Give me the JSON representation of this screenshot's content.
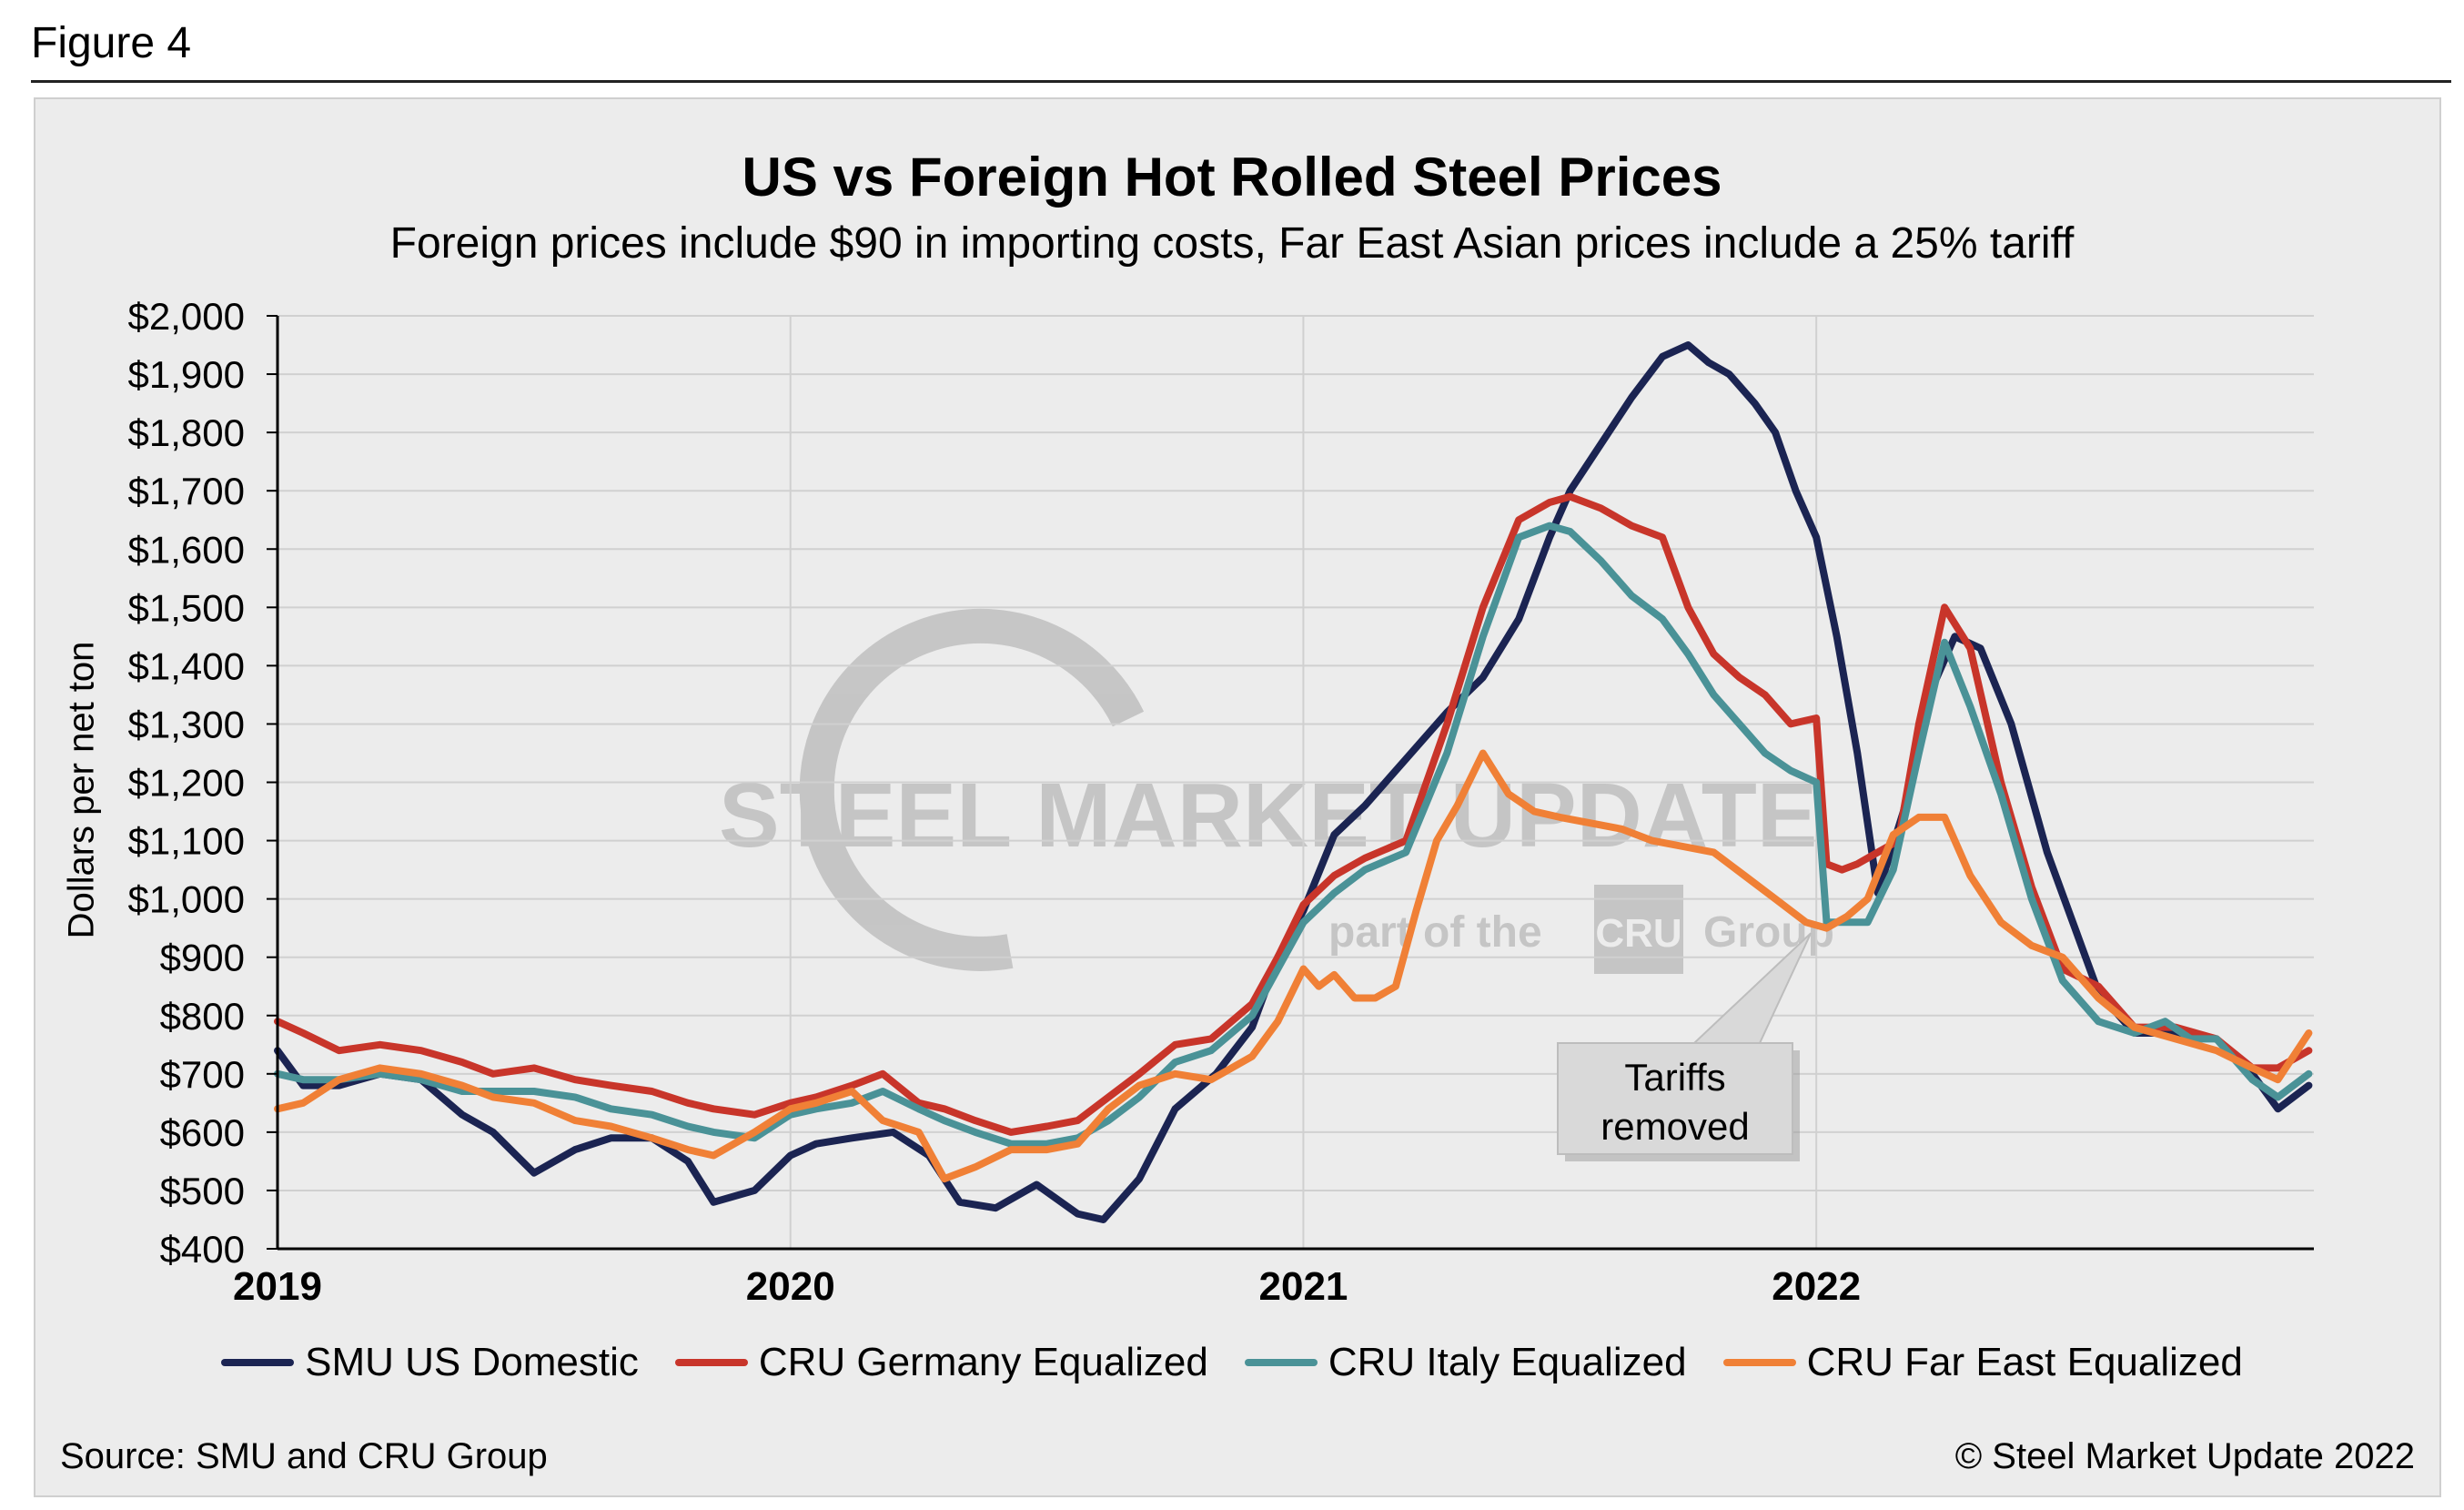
{
  "figure_label": "Figure 4",
  "source": "Source: SMU and CRU Group",
  "copyright": "© Steel Market Update 2022",
  "watermark": {
    "main": "STEEL MARKET UPDATE",
    "sub_left": "part of the",
    "sub_box": "CRU",
    "sub_right": "Group"
  },
  "annotation": {
    "line1": "Tariffs",
    "line2": "removed"
  },
  "colors": {
    "background": "#ececec",
    "grid": "#d0d0d0",
    "smu": "#1b2452",
    "germany": "#c8352a",
    "italy": "#4a9297",
    "fareast": "#f08036"
  },
  "chart_data": {
    "type": "line",
    "title": "US vs Foreign Hot Rolled Steel Prices",
    "subtitle": "Foreign prices include $90 in importing costs, Far East Asian prices include a 25% tariff",
    "ylabel": "Dollars per net ton",
    "xlabel": "",
    "xlim": [
      2019.0,
      2022.97
    ],
    "ylim": [
      400,
      2000
    ],
    "yticks": [
      400,
      500,
      600,
      700,
      800,
      900,
      1000,
      1100,
      1200,
      1300,
      1400,
      1500,
      1600,
      1700,
      1800,
      1900,
      2000
    ],
    "ytick_labels": [
      "$400",
      "$500",
      "$600",
      "$700",
      "$800",
      "$900",
      "$1,000",
      "$1,100",
      "$1,200",
      "$1,300",
      "$1,400",
      "$1,500",
      "$1,600",
      "$1,700",
      "$1,800",
      "$1,900",
      "$2,000"
    ],
    "xticks": [
      2019,
      2020,
      2021,
      2022
    ],
    "xtick_labels": [
      "2019",
      "2020",
      "2021",
      "2022"
    ],
    "grid": true,
    "legend_position": "bottom",
    "annotation": {
      "x": 2022.0,
      "y": 960,
      "text": "Tariffs removed"
    },
    "series": [
      {
        "name": "SMU US Domestic",
        "color": "#1b2452",
        "x": [
          2019.0,
          2019.05,
          2019.12,
          2019.2,
          2019.28,
          2019.36,
          2019.42,
          2019.5,
          2019.58,
          2019.65,
          2019.73,
          2019.8,
          2019.85,
          2019.93,
          2020.0,
          2020.05,
          2020.12,
          2020.2,
          2020.27,
          2020.33,
          2020.4,
          2020.48,
          2020.56,
          2020.61,
          2020.68,
          2020.75,
          2020.83,
          2020.9,
          2020.95,
          2021.0,
          2021.06,
          2021.12,
          2021.2,
          2021.28,
          2021.35,
          2021.42,
          2021.48,
          2021.52,
          2021.58,
          2021.64,
          2021.7,
          2021.75,
          2021.79,
          2021.83,
          2021.88,
          2021.92,
          2021.96,
          2022.0,
          2022.04,
          2022.08,
          2022.12,
          2022.17,
          2022.22,
          2022.27,
          2022.32,
          2022.38,
          2022.45,
          2022.55,
          2022.62,
          2022.7,
          2022.78,
          2022.85,
          2022.9,
          2022.96
        ],
        "y": [
          740,
          680,
          680,
          700,
          690,
          630,
          600,
          530,
          570,
          590,
          590,
          550,
          480,
          500,
          560,
          580,
          590,
          600,
          560,
          480,
          470,
          510,
          460,
          450,
          520,
          640,
          700,
          780,
          900,
          980,
          1110,
          1160,
          1240,
          1320,
          1380,
          1480,
          1620,
          1700,
          1780,
          1860,
          1930,
          1950,
          1920,
          1900,
          1850,
          1800,
          1700,
          1620,
          1450,
          1250,
          1010,
          1150,
          1350,
          1450,
          1430,
          1300,
          1080,
          840,
          770,
          770,
          760,
          700,
          640,
          680
        ]
      },
      {
        "name": "CRU Germany Equalized",
        "color": "#c8352a",
        "x": [
          2019.0,
          2019.05,
          2019.12,
          2019.2,
          2019.28,
          2019.36,
          2019.42,
          2019.5,
          2019.58,
          2019.65,
          2019.73,
          2019.8,
          2019.85,
          2019.93,
          2020.0,
          2020.05,
          2020.12,
          2020.18,
          2020.25,
          2020.3,
          2020.36,
          2020.43,
          2020.5,
          2020.56,
          2020.62,
          2020.68,
          2020.75,
          2020.82,
          2020.9,
          2020.95,
          2021.0,
          2021.06,
          2021.12,
          2021.2,
          2021.28,
          2021.35,
          2021.42,
          2021.48,
          2021.52,
          2021.58,
          2021.64,
          2021.7,
          2021.75,
          2021.8,
          2021.85,
          2021.9,
          2021.95,
          2022.0,
          2022.02,
          2022.05,
          2022.08,
          2022.12,
          2022.16,
          2022.2,
          2022.25,
          2022.3,
          2022.36,
          2022.42,
          2022.48,
          2022.55,
          2022.62,
          2022.7,
          2022.78,
          2022.85,
          2022.9,
          2022.96
        ],
        "y": [
          790,
          770,
          740,
          750,
          740,
          720,
          700,
          710,
          690,
          680,
          670,
          650,
          640,
          630,
          650,
          660,
          680,
          700,
          650,
          640,
          620,
          600,
          610,
          620,
          660,
          700,
          750,
          760,
          820,
          900,
          990,
          1040,
          1070,
          1100,
          1300,
          1500,
          1650,
          1680,
          1690,
          1670,
          1640,
          1620,
          1500,
          1420,
          1380,
          1350,
          1300,
          1310,
          1060,
          1050,
          1060,
          1080,
          1100,
          1300,
          1500,
          1430,
          1200,
          1020,
          880,
          850,
          780,
          780,
          760,
          710,
          710,
          740
        ]
      },
      {
        "name": "CRU Italy Equalized",
        "color": "#4a9297",
        "x": [
          2019.0,
          2019.05,
          2019.12,
          2019.2,
          2019.28,
          2019.36,
          2019.42,
          2019.5,
          2019.58,
          2019.65,
          2019.73,
          2019.8,
          2019.85,
          2019.93,
          2020.0,
          2020.05,
          2020.12,
          2020.18,
          2020.25,
          2020.3,
          2020.36,
          2020.43,
          2020.5,
          2020.56,
          2020.62,
          2020.68,
          2020.75,
          2020.82,
          2020.9,
          2020.95,
          2021.0,
          2021.06,
          2021.12,
          2021.2,
          2021.28,
          2021.35,
          2021.42,
          2021.48,
          2021.52,
          2021.58,
          2021.64,
          2021.7,
          2021.75,
          2021.8,
          2021.85,
          2021.9,
          2021.95,
          2022.0,
          2022.02,
          2022.06,
          2022.1,
          2022.15,
          2022.2,
          2022.25,
          2022.3,
          2022.36,
          2022.42,
          2022.48,
          2022.55,
          2022.62,
          2022.68,
          2022.73,
          2022.78,
          2022.85,
          2022.9,
          2022.96
        ],
        "y": [
          700,
          690,
          690,
          700,
          690,
          670,
          670,
          670,
          660,
          640,
          630,
          610,
          600,
          590,
          630,
          640,
          650,
          670,
          640,
          620,
          600,
          580,
          580,
          590,
          620,
          660,
          720,
          740,
          800,
          880,
          960,
          1010,
          1050,
          1080,
          1250,
          1450,
          1620,
          1640,
          1630,
          1580,
          1520,
          1480,
          1420,
          1350,
          1300,
          1250,
          1220,
          1200,
          960,
          960,
          960,
          1050,
          1250,
          1440,
          1330,
          1180,
          1000,
          860,
          790,
          770,
          790,
          760,
          760,
          690,
          660,
          700
        ]
      },
      {
        "name": "CRU Far East Equalized",
        "color": "#f08036",
        "x": [
          2019.0,
          2019.05,
          2019.12,
          2019.2,
          2019.28,
          2019.36,
          2019.42,
          2019.5,
          2019.58,
          2019.65,
          2019.73,
          2019.8,
          2019.85,
          2019.93,
          2020.0,
          2020.05,
          2020.12,
          2020.18,
          2020.25,
          2020.3,
          2020.36,
          2020.43,
          2020.5,
          2020.56,
          2020.62,
          2020.68,
          2020.75,
          2020.82,
          2020.9,
          2020.95,
          2021.0,
          2021.03,
          2021.06,
          2021.1,
          2021.14,
          2021.18,
          2021.22,
          2021.26,
          2021.3,
          2021.35,
          2021.4,
          2021.45,
          2021.5,
          2021.56,
          2021.62,
          2021.68,
          2021.74,
          2021.8,
          2021.86,
          2021.92,
          2021.98,
          2022.02,
          2022.06,
          2022.1,
          2022.15,
          2022.2,
          2022.25,
          2022.3,
          2022.36,
          2022.42,
          2022.48,
          2022.55,
          2022.62,
          2022.7,
          2022.78,
          2022.85,
          2022.9,
          2022.96
        ],
        "y": [
          640,
          650,
          690,
          710,
          700,
          680,
          660,
          650,
          620,
          610,
          590,
          570,
          560,
          600,
          640,
          650,
          670,
          620,
          600,
          520,
          540,
          570,
          570,
          580,
          640,
          680,
          700,
          690,
          730,
          790,
          880,
          850,
          870,
          830,
          830,
          850,
          980,
          1100,
          1160,
          1250,
          1180,
          1150,
          1140,
          1130,
          1120,
          1100,
          1090,
          1080,
          1040,
          1000,
          960,
          950,
          970,
          1000,
          1110,
          1140,
          1140,
          1040,
          960,
          920,
          900,
          830,
          780,
          760,
          740,
          710,
          690,
          770
        ]
      }
    ]
  }
}
